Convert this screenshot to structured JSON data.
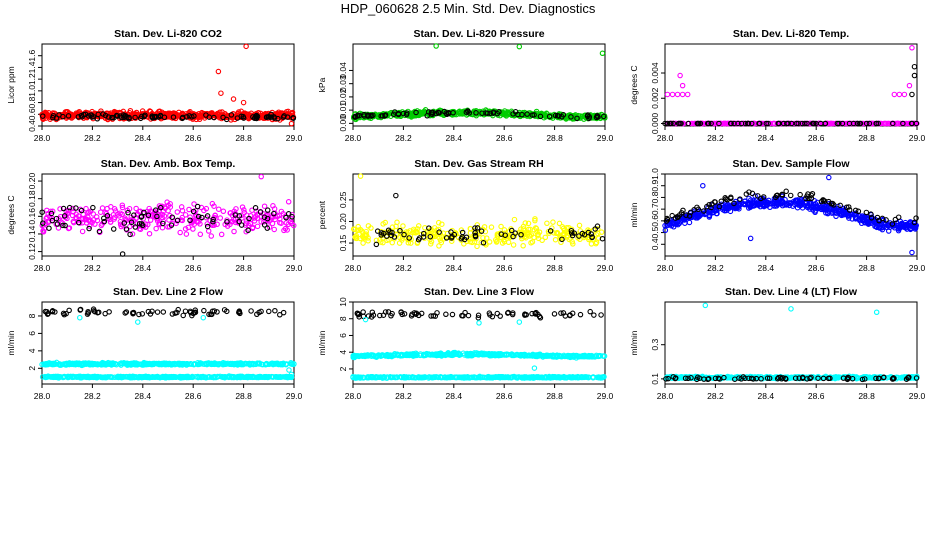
{
  "page_title": "HDP_060628  2.5 Min. Std. Dev. Diagnostics",
  "colors": {
    "black": "#000000",
    "red": "#ff0000",
    "green": "#00cc00",
    "magenta": "#ff00ff",
    "yellow": "#ffff00",
    "blue": "#0000ff",
    "cyan": "#00ffff"
  },
  "chart_data": [
    {
      "type": "scatter",
      "title": "Stan. Dev. Li-820 CO2",
      "ylabel": "Licor ppm",
      "xlabel": "",
      "xlim": [
        28.0,
        29.0
      ],
      "ylim": [
        0.4,
        1.8
      ],
      "xticks": [
        "28.0",
        "28.2",
        "28.4",
        "28.6",
        "28.8",
        "29.0"
      ],
      "yticks": [
        "0.4",
        "0.6",
        "0.8",
        "1.0",
        "1.2",
        "1.4",
        "1.6"
      ],
      "series": [
        {
          "name": "band",
          "color": "red",
          "n": 600,
          "base": 0.58,
          "curve": 0,
          "noise": 0.06
        },
        {
          "name": "band",
          "color": "black",
          "n": 90,
          "base": 0.56,
          "curve": 0,
          "noise": 0.04
        }
      ],
      "points": [
        {
          "color": "red",
          "x": 28.7,
          "y": 1.33
        },
        {
          "color": "red",
          "x": 28.81,
          "y": 1.76
        },
        {
          "color": "red",
          "x": 28.71,
          "y": 0.96
        },
        {
          "color": "red",
          "x": 28.8,
          "y": 0.8
        },
        {
          "color": "red",
          "x": 28.76,
          "y": 0.86
        },
        {
          "color": "red",
          "x": 28.99,
          "y": 0.44
        }
      ]
    },
    {
      "type": "scatter",
      "title": "Stan. Dev. Li-820 Pressure",
      "ylabel": "kPa",
      "xlabel": "",
      "xlim": [
        28.0,
        29.0
      ],
      "ylim": [
        -0.002,
        0.06
      ],
      "xticks": [
        "28.0",
        "28.2",
        "28.4",
        "28.6",
        "28.8",
        "29.0"
      ],
      "yticks": [
        "0.00",
        "0.01",
        "0.02",
        "0.03",
        "0.04"
      ],
      "series": [
        {
          "name": "band",
          "color": "green",
          "n": 520,
          "base": 0.005,
          "curve": 0.003,
          "noise": 0.0018
        },
        {
          "name": "band",
          "color": "black",
          "n": 80,
          "base": 0.005,
          "curve": 0.003,
          "noise": 0.0015
        }
      ],
      "points": [
        {
          "color": "green",
          "x": 28.33,
          "y": 0.059
        },
        {
          "color": "green",
          "x": 28.66,
          "y": 0.058
        },
        {
          "color": "green",
          "x": 28.99,
          "y": 0.053
        }
      ]
    },
    {
      "type": "scatter",
      "title": "Stan. Dev. Li-820 Temp.",
      "ylabel": "degrees C",
      "xlabel": "",
      "xlim": [
        28.0,
        29.0
      ],
      "ylim": [
        -0.0002,
        0.0063
      ],
      "xticks": [
        "28.0",
        "28.2",
        "28.4",
        "28.6",
        "28.8",
        "29.0"
      ],
      "yticks": [
        "0.000",
        "0.002",
        "0.004"
      ],
      "series": [
        {
          "name": "band",
          "color": "magenta",
          "n": 300,
          "base": 0.0,
          "curve": 0,
          "noise": 0
        },
        {
          "name": "band",
          "color": "black",
          "n": 70,
          "base": 0.0,
          "curve": 0,
          "noise": 0
        }
      ],
      "points": [
        {
          "color": "magenta",
          "x": 28.01,
          "y": 0.0023
        },
        {
          "color": "magenta",
          "x": 28.03,
          "y": 0.0023
        },
        {
          "color": "magenta",
          "x": 28.05,
          "y": 0.0023
        },
        {
          "color": "magenta",
          "x": 28.07,
          "y": 0.0023
        },
        {
          "color": "magenta",
          "x": 28.09,
          "y": 0.0023
        },
        {
          "color": "magenta",
          "x": 28.06,
          "y": 0.0038
        },
        {
          "color": "magenta",
          "x": 28.07,
          "y": 0.003
        },
        {
          "color": "magenta",
          "x": 28.91,
          "y": 0.0023
        },
        {
          "color": "magenta",
          "x": 28.93,
          "y": 0.0023
        },
        {
          "color": "magenta",
          "x": 28.95,
          "y": 0.0023
        },
        {
          "color": "magenta",
          "x": 28.97,
          "y": 0.003
        },
        {
          "color": "magenta",
          "x": 28.98,
          "y": 0.006
        },
        {
          "color": "black",
          "x": 28.99,
          "y": 0.0045
        },
        {
          "color": "black",
          "x": 28.99,
          "y": 0.0038
        },
        {
          "color": "black",
          "x": 28.98,
          "y": 0.0023
        }
      ]
    },
    {
      "type": "scatter",
      "title": "Stan. Dev. Amb. Box Temp.",
      "ylabel": "degrees C",
      "xlabel": "",
      "xlim": [
        28.0,
        29.0
      ],
      "ylim": [
        0.115,
        0.208
      ],
      "xticks": [
        "28.0",
        "28.2",
        "28.4",
        "28.6",
        "28.8",
        "29.0"
      ],
      "yticks": [
        "0.12",
        "0.14",
        "0.16",
        "0.18",
        "0.20"
      ],
      "series": [
        {
          "name": "band",
          "color": "magenta",
          "n": 330,
          "base": 0.158,
          "curve": 0,
          "noise": 0.016
        },
        {
          "name": "band",
          "color": "black",
          "n": 70,
          "base": 0.158,
          "curve": 0,
          "noise": 0.014
        }
      ],
      "points": [
        {
          "color": "black",
          "x": 28.32,
          "y": 0.117
        },
        {
          "color": "magenta",
          "x": 28.87,
          "y": 0.205
        }
      ]
    },
    {
      "type": "scatter",
      "title": "Stan. Dev. Gas Stream RH",
      "ylabel": "percent",
      "xlabel": "",
      "xlim": [
        28.0,
        29.0
      ],
      "ylim": [
        0.12,
        0.31
      ],
      "xticks": [
        "28.0",
        "28.2",
        "28.4",
        "28.6",
        "28.8",
        "29.0"
      ],
      "yticks": [
        "0.15",
        "0.20",
        "0.25"
      ],
      "series": [
        {
          "name": "band",
          "color": "yellow",
          "n": 300,
          "base": 0.17,
          "curve": 0,
          "noise": 0.025
        },
        {
          "name": "band",
          "color": "black",
          "n": 60,
          "base": 0.17,
          "curve": 0,
          "noise": 0.02
        }
      ],
      "points": [
        {
          "color": "yellow",
          "x": 28.03,
          "y": 0.305
        },
        {
          "color": "black",
          "x": 28.17,
          "y": 0.26
        }
      ]
    },
    {
      "type": "scatter",
      "title": "Stan. Dev. Sample Flow",
      "ylabel": "ml/min",
      "xlabel": "",
      "xlim": [
        28.0,
        29.0
      ],
      "ylim": [
        0.3,
        1.0
      ],
      "xticks": [
        "28.0",
        "28.2",
        "28.4",
        "28.6",
        "28.8",
        "29.0"
      ],
      "yticks": [
        "0.4",
        "0.5",
        "0.6",
        "0.7",
        "0.8",
        "0.9",
        "1.0"
      ],
      "series": [
        {
          "name": "band",
          "color": "blue",
          "n": 520,
          "base": 0.56,
          "curve": 0.2,
          "noise": 0.04
        },
        {
          "name": "band",
          "color": "black",
          "n": 80,
          "base": 0.6,
          "curve": 0.22,
          "noise": 0.04
        }
      ],
      "points": [
        {
          "color": "blue",
          "x": 28.65,
          "y": 0.97
        },
        {
          "color": "blue",
          "x": 28.15,
          "y": 0.9
        },
        {
          "color": "blue",
          "x": 28.34,
          "y": 0.45
        },
        {
          "color": "blue",
          "x": 28.98,
          "y": 0.33
        }
      ]
    },
    {
      "type": "scatter",
      "title": "Stan. Dev. Line 2 Flow",
      "ylabel": "ml/min",
      "xlabel": "",
      "xlim": [
        28.0,
        29.0
      ],
      "ylim": [
        0.2,
        9.6
      ],
      "xticks": [
        "28.0",
        "28.2",
        "28.4",
        "28.6",
        "28.8",
        "29.0"
      ],
      "yticks": [
        "2",
        "4",
        "6",
        "8"
      ],
      "series": [
        {
          "name": "band",
          "color": "cyan",
          "n": 420,
          "base": 2.5,
          "curve": 0,
          "noise": 0.12
        },
        {
          "name": "band",
          "color": "cyan",
          "n": 420,
          "base": 1.0,
          "curve": 0,
          "noise": 0.08
        },
        {
          "name": "band",
          "color": "black",
          "n": 70,
          "base": 8.4,
          "curve": 0,
          "noise": 0.35
        }
      ],
      "points": [
        {
          "color": "cyan",
          "x": 28.15,
          "y": 7.8
        },
        {
          "color": "cyan",
          "x": 28.38,
          "y": 7.3
        },
        {
          "color": "cyan",
          "x": 28.64,
          "y": 7.8
        },
        {
          "color": "cyan",
          "x": 28.98,
          "y": 1.8
        },
        {
          "color": "cyan",
          "x": 28.99,
          "y": 1.3
        }
      ]
    },
    {
      "type": "scatter",
      "title": "Stan. Dev. Line 3 Flow",
      "ylabel": "ml/min",
      "xlabel": "",
      "xlim": [
        28.0,
        29.0
      ],
      "ylim": [
        0.2,
        10.0
      ],
      "xticks": [
        "28.0",
        "28.2",
        "28.4",
        "28.6",
        "28.8",
        "29.0"
      ],
      "yticks": [
        "2",
        "4",
        "6",
        "8",
        "10"
      ],
      "series": [
        {
          "name": "band",
          "color": "cyan",
          "n": 420,
          "base": 3.5,
          "curve": 0.25,
          "noise": 0.15
        },
        {
          "name": "band",
          "color": "cyan",
          "n": 420,
          "base": 1.0,
          "curve": 0,
          "noise": 0.08
        },
        {
          "name": "band",
          "color": "black",
          "n": 70,
          "base": 8.5,
          "curve": 0,
          "noise": 0.35
        }
      ],
      "points": [
        {
          "color": "cyan",
          "x": 28.05,
          "y": 7.9
        },
        {
          "color": "cyan",
          "x": 28.5,
          "y": 7.5
        },
        {
          "color": "cyan",
          "x": 28.66,
          "y": 7.6
        },
        {
          "color": "cyan",
          "x": 28.72,
          "y": 2.1
        }
      ]
    },
    {
      "type": "scatter",
      "title": "Stan. Dev. Line 4 (LT) Flow",
      "ylabel": "ml/min",
      "xlabel": "",
      "xlim": [
        28.0,
        29.0
      ],
      "ylim": [
        0.07,
        0.55
      ],
      "xticks": [
        "28.0",
        "28.2",
        "28.4",
        "28.6",
        "28.8",
        "29.0"
      ],
      "yticks": [
        "0.1",
        "0.3"
      ],
      "series": [
        {
          "name": "band",
          "color": "cyan",
          "n": 420,
          "base": 0.108,
          "curve": 0,
          "noise": 0.006
        },
        {
          "name": "band",
          "color": "black",
          "n": 70,
          "base": 0.104,
          "curve": 0,
          "noise": 0.008
        }
      ],
      "points": [
        {
          "color": "cyan",
          "x": 28.16,
          "y": 0.53
        },
        {
          "color": "cyan",
          "x": 28.5,
          "y": 0.51
        },
        {
          "color": "cyan",
          "x": 28.84,
          "y": 0.49
        }
      ]
    }
  ]
}
